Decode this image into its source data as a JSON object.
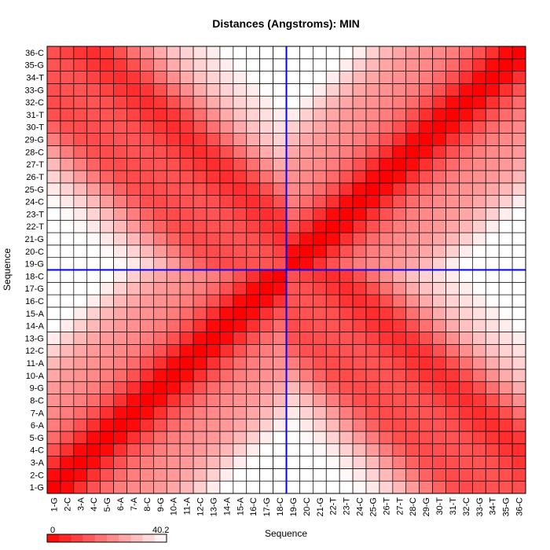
{
  "chart_data": {
    "type": "heatmap",
    "title": "Distances (Angstroms):  MIN",
    "xlabel": "Sequence",
    "ylabel": "Sequence",
    "residues": [
      "1-G",
      "2-C",
      "3-A",
      "4-C",
      "5-G",
      "6-A",
      "7-A",
      "8-C",
      "9-G",
      "10-A",
      "11-A",
      "12-C",
      "13-G",
      "14-A",
      "15-A",
      "16-C",
      "17-G",
      "18-C",
      "19-G",
      "20-C",
      "21-G",
      "22-T",
      "23-T",
      "24-C",
      "25-G",
      "26-T",
      "27-T",
      "28-C",
      "29-G",
      "30-T",
      "31-T",
      "32-C",
      "33-G",
      "34-T",
      "35-G",
      "36-C"
    ],
    "value_range": [
      0,
      40.2
    ],
    "colorbar_min_label": "0",
    "colorbar_max_label": "40.2",
    "colormap": {
      "low": "#ff0000",
      "high": "#ffffff"
    },
    "crosshair": {
      "x": "18-C",
      "y": "18-C",
      "color": "#0000ff"
    },
    "grid": true,
    "colorbar_position": "bottom-left"
  }
}
